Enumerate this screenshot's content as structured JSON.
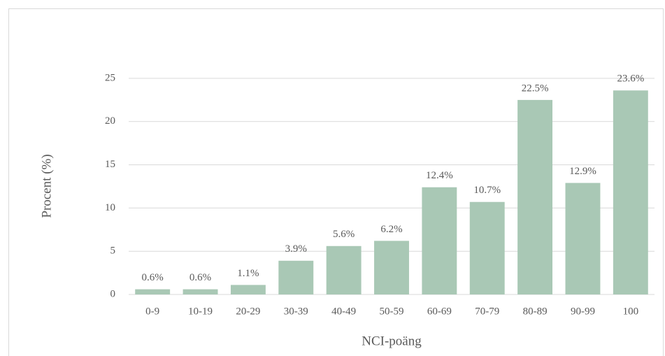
{
  "chart_data": {
    "type": "bar",
    "categories": [
      "0-9",
      "10-19",
      "20-29",
      "30-39",
      "40-49",
      "50-59",
      "60-69",
      "70-79",
      "80-89",
      "90-99",
      "100"
    ],
    "values": [
      0.6,
      0.6,
      1.1,
      3.9,
      5.6,
      6.2,
      12.4,
      10.7,
      22.5,
      12.9,
      23.6
    ],
    "value_labels": [
      "0.6%",
      "0.6%",
      "1.1%",
      "3.9%",
      "5.6%",
      "6.2%",
      "12.4%",
      "10.7%",
      "22.5%",
      "12.9%",
      "23.6%"
    ],
    "color": "#a9c8b5",
    "x_label": "NCI-poäng",
    "y_label": "Procent (%)",
    "ylim": [
      0,
      25
    ],
    "yticks": [
      0,
      5,
      10,
      15,
      20,
      25
    ],
    "grid": true
  }
}
